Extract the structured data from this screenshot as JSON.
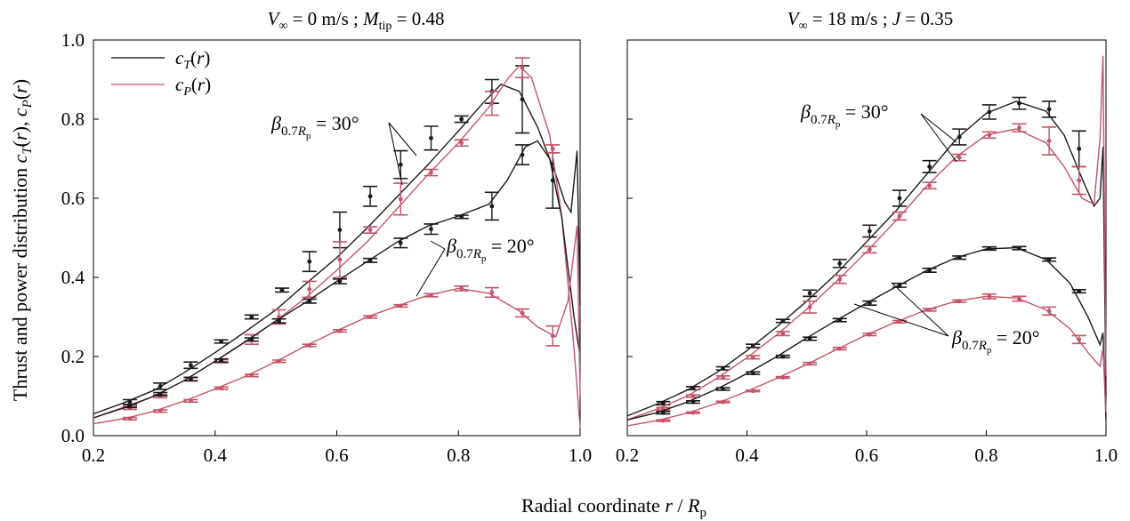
{
  "figure": {
    "ylabel": "Thrust and power distribution c_T(r), c_P(r)",
    "xlabel": "Radial coordinate r / R_p"
  },
  "legend": [
    {
      "label": "c_T(r)",
      "color": "#000000"
    },
    {
      "label": "c_P(r)",
      "color": "#c4546a"
    }
  ],
  "colors": {
    "thrust": "#1a1a1a",
    "power": "#c4546a"
  },
  "chart_data": [
    {
      "type": "line",
      "title": "V_∞ = 0 m/s ; M_tip = 0.48",
      "xlim": [
        0.2,
        1.0
      ],
      "ylim": [
        0.0,
        1.0
      ],
      "xticks": [
        "0.2",
        "0.4",
        "0.6",
        "0.8",
        "1.0"
      ],
      "yticks": [
        "0.0",
        "0.2",
        "0.4",
        "0.6",
        "0.8",
        "1.0"
      ],
      "annotations": [
        {
          "text": "β_0.7Rp = 30°",
          "targets": [
            "cT_30",
            "cP_30"
          ]
        },
        {
          "text": "β_0.7Rp = 20°",
          "targets": [
            "cT_20",
            "cP_20"
          ]
        }
      ],
      "series": [
        {
          "name": "c_T(r)",
          "id": "cT_30",
          "kind": "thrust",
          "curve_x": [
            0.2,
            0.25,
            0.3,
            0.35,
            0.4,
            0.45,
            0.5,
            0.55,
            0.6,
            0.65,
            0.7,
            0.75,
            0.8,
            0.84,
            0.87,
            0.9,
            0.93,
            0.96,
            0.975,
            0.985,
            0.995,
            1.0
          ],
          "curve_y": [
            0.055,
            0.083,
            0.115,
            0.16,
            0.21,
            0.263,
            0.318,
            0.385,
            0.45,
            0.525,
            0.605,
            0.685,
            0.77,
            0.84,
            0.888,
            0.87,
            0.78,
            0.66,
            0.59,
            0.565,
            0.72,
            0.33
          ],
          "points_x": [
            0.26,
            0.31,
            0.36,
            0.41,
            0.46,
            0.51,
            0.555,
            0.605,
            0.655,
            0.705,
            0.755,
            0.805,
            0.855,
            0.905,
            0.955
          ],
          "points_y": [
            0.085,
            0.125,
            0.178,
            0.238,
            0.3,
            0.368,
            0.44,
            0.52,
            0.605,
            0.685,
            0.752,
            0.8,
            0.87,
            0.85,
            0.645
          ],
          "errors": [
            0.006,
            0.008,
            0.008,
            0.004,
            0.005,
            0.005,
            0.025,
            0.045,
            0.025,
            0.035,
            0.03,
            0.008,
            0.03,
            0.085,
            0.07
          ]
        },
        {
          "name": "c_P(r)",
          "id": "cP_30",
          "kind": "power",
          "curve_x": [
            0.2,
            0.25,
            0.3,
            0.35,
            0.4,
            0.45,
            0.5,
            0.55,
            0.6,
            0.65,
            0.7,
            0.75,
            0.8,
            0.85,
            0.88,
            0.9,
            0.92,
            0.95,
            0.97,
            0.99,
            1.0
          ],
          "curve_y": [
            0.045,
            0.072,
            0.1,
            0.14,
            0.188,
            0.237,
            0.29,
            0.35,
            0.418,
            0.49,
            0.575,
            0.66,
            0.74,
            0.83,
            0.9,
            0.935,
            0.905,
            0.76,
            0.55,
            0.22,
            0.02
          ],
          "points_x": [
            0.26,
            0.31,
            0.36,
            0.41,
            0.46,
            0.505,
            0.555,
            0.605,
            0.655,
            0.705,
            0.755,
            0.805,
            0.855,
            0.905,
            0.955
          ],
          "points_y": [
            0.07,
            0.1,
            0.143,
            0.188,
            0.243,
            0.3,
            0.37,
            0.445,
            0.52,
            0.598,
            0.665,
            0.74,
            0.84,
            0.93,
            0.725
          ],
          "errors": [
            0.004,
            0.004,
            0.005,
            0.004,
            0.012,
            0.018,
            0.02,
            0.045,
            0.008,
            0.04,
            0.008,
            0.008,
            0.03,
            0.025,
            0.01
          ]
        },
        {
          "name": "c_T(r)",
          "id": "cT_20",
          "kind": "thrust",
          "curve_x": [
            0.2,
            0.25,
            0.3,
            0.35,
            0.4,
            0.45,
            0.5,
            0.55,
            0.6,
            0.65,
            0.7,
            0.75,
            0.8,
            0.85,
            0.88,
            0.91,
            0.93,
            0.95,
            0.97,
            0.99,
            1.0
          ],
          "curve_y": [
            0.045,
            0.07,
            0.1,
            0.14,
            0.188,
            0.238,
            0.29,
            0.338,
            0.39,
            0.44,
            0.49,
            0.53,
            0.555,
            0.585,
            0.645,
            0.73,
            0.745,
            0.7,
            0.55,
            0.3,
            0.2
          ],
          "points_x": [
            0.26,
            0.31,
            0.36,
            0.41,
            0.46,
            0.505,
            0.555,
            0.605,
            0.655,
            0.705,
            0.755,
            0.805,
            0.855,
            0.905
          ],
          "points_y": [
            0.075,
            0.105,
            0.143,
            0.19,
            0.243,
            0.29,
            0.34,
            0.39,
            0.443,
            0.487,
            0.522,
            0.553,
            0.58,
            0.71
          ],
          "errors": [
            0.004,
            0.004,
            0.004,
            0.004,
            0.004,
            0.005,
            0.005,
            0.006,
            0.005,
            0.012,
            0.013,
            0.004,
            0.035,
            0.025
          ]
        },
        {
          "name": "c_P(r)",
          "id": "cP_20",
          "kind": "power",
          "curve_x": [
            0.2,
            0.25,
            0.3,
            0.35,
            0.4,
            0.45,
            0.5,
            0.55,
            0.6,
            0.65,
            0.7,
            0.75,
            0.8,
            0.85,
            0.9,
            0.93,
            0.96,
            0.98,
            0.995,
            1.0
          ],
          "curve_y": [
            0.03,
            0.043,
            0.062,
            0.088,
            0.118,
            0.15,
            0.187,
            0.228,
            0.265,
            0.3,
            0.328,
            0.355,
            0.372,
            0.36,
            0.315,
            0.275,
            0.25,
            0.34,
            0.53,
            0.1
          ],
          "points_x": [
            0.26,
            0.31,
            0.36,
            0.41,
            0.46,
            0.505,
            0.555,
            0.605,
            0.655,
            0.705,
            0.755,
            0.805,
            0.855,
            0.905,
            0.955
          ],
          "points_y": [
            0.043,
            0.062,
            0.088,
            0.12,
            0.152,
            0.188,
            0.228,
            0.265,
            0.3,
            0.328,
            0.355,
            0.372,
            0.362,
            0.31,
            0.252
          ],
          "errors": [
            0.003,
            0.003,
            0.003,
            0.003,
            0.003,
            0.003,
            0.003,
            0.003,
            0.003,
            0.003,
            0.004,
            0.006,
            0.012,
            0.01,
            0.025
          ]
        }
      ]
    },
    {
      "type": "line",
      "title": "V_∞ = 18 m/s ; J = 0.35",
      "xlim": [
        0.2,
        1.0
      ],
      "ylim": [
        0.0,
        1.0
      ],
      "xticks": [
        "0.2",
        "0.4",
        "0.6",
        "0.8",
        "1.0"
      ],
      "yticks": [],
      "annotations": [
        {
          "text": "β_0.7Rp = 30°",
          "targets": [
            "cT_30",
            "cP_30"
          ]
        },
        {
          "text": "β_0.7Rp = 20°",
          "targets": [
            "cT_20",
            "cP_20"
          ]
        }
      ],
      "series": [
        {
          "name": "c_T(r)",
          "id": "cT_30",
          "kind": "thrust",
          "curve_x": [
            0.2,
            0.25,
            0.3,
            0.35,
            0.4,
            0.45,
            0.5,
            0.55,
            0.6,
            0.65,
            0.7,
            0.75,
            0.8,
            0.85,
            0.9,
            0.93,
            0.96,
            0.98,
            0.99,
            0.995,
            1.0
          ],
          "curve_y": [
            0.05,
            0.08,
            0.115,
            0.16,
            0.215,
            0.275,
            0.34,
            0.41,
            0.49,
            0.57,
            0.66,
            0.75,
            0.815,
            0.845,
            0.82,
            0.76,
            0.65,
            0.58,
            0.6,
            0.73,
            0.1
          ],
          "points_x": [
            0.26,
            0.31,
            0.36,
            0.41,
            0.46,
            0.505,
            0.555,
            0.605,
            0.655,
            0.705,
            0.755,
            0.805,
            0.855,
            0.905,
            0.955
          ],
          "points_y": [
            0.082,
            0.12,
            0.17,
            0.227,
            0.29,
            0.36,
            0.435,
            0.517,
            0.6,
            0.68,
            0.755,
            0.818,
            0.84,
            0.825,
            0.725
          ],
          "errors": [
            0.004,
            0.004,
            0.004,
            0.004,
            0.004,
            0.008,
            0.01,
            0.015,
            0.02,
            0.015,
            0.02,
            0.018,
            0.015,
            0.02,
            0.045
          ]
        },
        {
          "name": "c_P(r)",
          "id": "cP_30",
          "kind": "power",
          "curve_x": [
            0.2,
            0.25,
            0.3,
            0.35,
            0.4,
            0.45,
            0.5,
            0.55,
            0.6,
            0.65,
            0.7,
            0.75,
            0.8,
            0.85,
            0.9,
            0.93,
            0.96,
            0.98,
            0.99,
            0.995,
            1.0
          ],
          "curve_y": [
            0.04,
            0.067,
            0.1,
            0.145,
            0.197,
            0.255,
            0.32,
            0.39,
            0.465,
            0.545,
            0.63,
            0.705,
            0.76,
            0.775,
            0.74,
            0.68,
            0.6,
            0.585,
            0.75,
            0.96,
            0.15
          ],
          "points_x": [
            0.26,
            0.31,
            0.36,
            0.41,
            0.46,
            0.505,
            0.555,
            0.605,
            0.655,
            0.705,
            0.755,
            0.805,
            0.855,
            0.905,
            0.955
          ],
          "points_y": [
            0.068,
            0.1,
            0.147,
            0.198,
            0.258,
            0.325,
            0.395,
            0.47,
            0.555,
            0.632,
            0.703,
            0.76,
            0.778,
            0.745,
            0.645
          ],
          "errors": [
            0.003,
            0.003,
            0.004,
            0.004,
            0.005,
            0.015,
            0.01,
            0.008,
            0.01,
            0.008,
            0.008,
            0.008,
            0.01,
            0.035,
            0.035
          ]
        },
        {
          "name": "c_T(r)",
          "id": "cT_20",
          "kind": "thrust",
          "curve_x": [
            0.2,
            0.25,
            0.3,
            0.35,
            0.4,
            0.45,
            0.5,
            0.55,
            0.6,
            0.65,
            0.7,
            0.75,
            0.8,
            0.85,
            0.9,
            0.94,
            0.97,
            0.99,
            0.995,
            1.0
          ],
          "curve_y": [
            0.04,
            0.058,
            0.085,
            0.118,
            0.157,
            0.2,
            0.247,
            0.292,
            0.335,
            0.377,
            0.417,
            0.45,
            0.472,
            0.475,
            0.445,
            0.385,
            0.3,
            0.23,
            0.26,
            0.04
          ],
          "points_x": [
            0.26,
            0.31,
            0.36,
            0.41,
            0.46,
            0.505,
            0.555,
            0.605,
            0.655,
            0.705,
            0.755,
            0.805,
            0.855,
            0.905,
            0.955
          ],
          "points_y": [
            0.058,
            0.085,
            0.118,
            0.158,
            0.2,
            0.245,
            0.292,
            0.335,
            0.38,
            0.418,
            0.45,
            0.473,
            0.474,
            0.445,
            0.365
          ],
          "errors": [
            0.003,
            0.003,
            0.003,
            0.003,
            0.003,
            0.004,
            0.004,
            0.005,
            0.005,
            0.005,
            0.004,
            0.004,
            0.004,
            0.004,
            0.004
          ]
        },
        {
          "name": "c_P(r)",
          "id": "cP_20",
          "kind": "power",
          "curve_x": [
            0.2,
            0.25,
            0.3,
            0.35,
            0.4,
            0.45,
            0.5,
            0.55,
            0.6,
            0.65,
            0.7,
            0.75,
            0.8,
            0.85,
            0.9,
            0.94,
            0.97,
            0.99,
            0.995,
            1.0
          ],
          "curve_y": [
            0.025,
            0.038,
            0.057,
            0.082,
            0.112,
            0.145,
            0.18,
            0.218,
            0.255,
            0.288,
            0.318,
            0.34,
            0.352,
            0.348,
            0.318,
            0.27,
            0.21,
            0.175,
            0.22,
            0.06
          ],
          "points_x": [
            0.26,
            0.31,
            0.36,
            0.41,
            0.46,
            0.505,
            0.555,
            0.605,
            0.655,
            0.705,
            0.755,
            0.805,
            0.855,
            0.905,
            0.955
          ],
          "points_y": [
            0.038,
            0.058,
            0.085,
            0.113,
            0.147,
            0.182,
            0.22,
            0.256,
            0.288,
            0.318,
            0.34,
            0.352,
            0.346,
            0.315,
            0.243
          ],
          "errors": [
            0.002,
            0.002,
            0.002,
            0.002,
            0.002,
            0.003,
            0.003,
            0.003,
            0.003,
            0.003,
            0.003,
            0.006,
            0.006,
            0.01,
            0.01
          ]
        }
      ]
    }
  ]
}
